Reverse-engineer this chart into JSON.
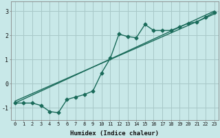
{
  "xlabel": "Humidex (Indice chaleur)",
  "background_color": "#c8e8e8",
  "grid_color": "#a8c8c8",
  "line_color": "#1a6b5a",
  "xlim": [
    -0.5,
    23.5
  ],
  "ylim": [
    -1.5,
    3.4
  ],
  "xticks": [
    0,
    1,
    2,
    3,
    4,
    5,
    6,
    7,
    8,
    9,
    10,
    11,
    12,
    13,
    14,
    15,
    16,
    17,
    18,
    19,
    20,
    21,
    22,
    23
  ],
  "yticks": [
    -1,
    0,
    1,
    2,
    3
  ],
  "line1_x": [
    0,
    1,
    2,
    3,
    4,
    5,
    6,
    7,
    8,
    9,
    10,
    11,
    12,
    13,
    14,
    15,
    16,
    17,
    18,
    19,
    20,
    21,
    22,
    23
  ],
  "line1_y": [
    -0.8,
    -0.8,
    -0.8,
    -0.9,
    -1.15,
    -1.2,
    -0.65,
    -0.55,
    -0.45,
    -0.3,
    0.45,
    1.05,
    2.05,
    1.95,
    1.9,
    2.45,
    2.2,
    2.2,
    2.2,
    2.35,
    2.5,
    2.55,
    2.75,
    2.95
  ],
  "line2_x": [
    0,
    23
  ],
  "line2_y": [
    -0.8,
    3.0
  ],
  "line3_x": [
    0,
    23
  ],
  "line3_y": [
    -0.72,
    2.88
  ]
}
